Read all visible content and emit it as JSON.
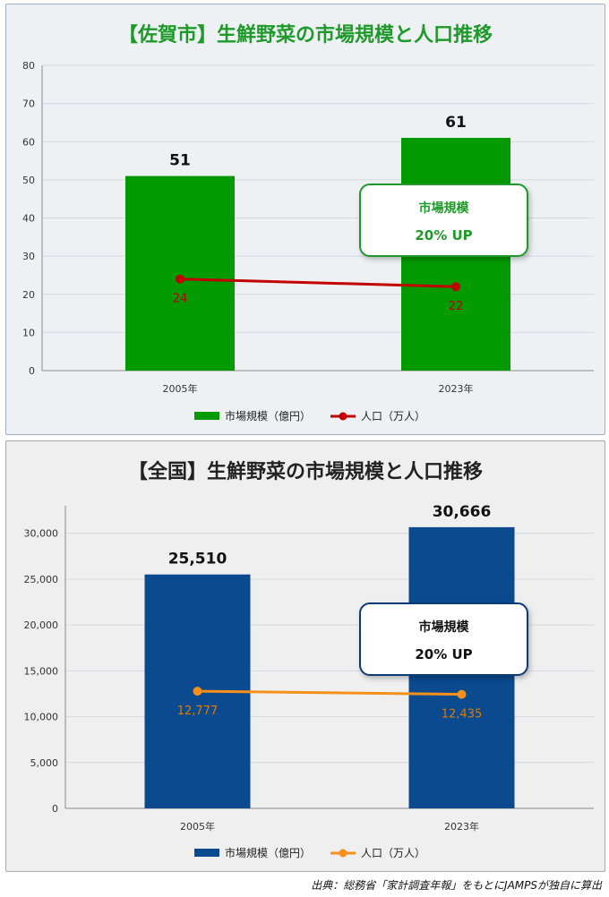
{
  "chart_data": [
    {
      "type": "bar",
      "title": "【佐賀市】生鮮野菜の市場規模と人口推移",
      "categories": [
        "2005年",
        "2023年"
      ],
      "ylim": [
        0,
        80
      ],
      "yticks": [
        "0",
        "10",
        "20",
        "30",
        "40",
        "50",
        "60",
        "70",
        "80"
      ],
      "grid": true,
      "legend_position": "bottom",
      "series": [
        {
          "name": "市場規模（億円）",
          "type": "bar",
          "values": [
            51,
            61
          ],
          "labels": [
            "51",
            "61"
          ],
          "color": "#049a04"
        },
        {
          "name": "人口（万人）",
          "type": "line",
          "values": [
            24,
            22
          ],
          "labels": [
            "24",
            "22"
          ],
          "color": "#c00000"
        }
      ],
      "callout": {
        "line1": "市場規模",
        "line2": "20% UP"
      }
    },
    {
      "type": "bar",
      "title": "【全国】生鮮野菜の市場規模と人口推移",
      "categories": [
        "2005年",
        "2023年"
      ],
      "ylim": [
        0,
        33000
      ],
      "yticks": [
        "0",
        "5,000",
        "10,000",
        "15,000",
        "20,000",
        "25,000",
        "30,000"
      ],
      "grid": true,
      "legend_position": "bottom",
      "series": [
        {
          "name": "市場規模（億円）",
          "type": "bar",
          "values": [
            25510,
            30666
          ],
          "labels": [
            "25,510",
            "30,666"
          ],
          "color": "#0b4a8f"
        },
        {
          "name": "人口（万人）",
          "type": "line",
          "values": [
            12777,
            12435
          ],
          "labels": [
            "12,777",
            "12,435"
          ],
          "color": "#f5901a"
        }
      ],
      "callout": {
        "line1": "市場規模",
        "line2": "20% UP"
      }
    }
  ],
  "source_note": "出典：総務省「家計調査年報」をもとにJAMPSが独自に算出"
}
